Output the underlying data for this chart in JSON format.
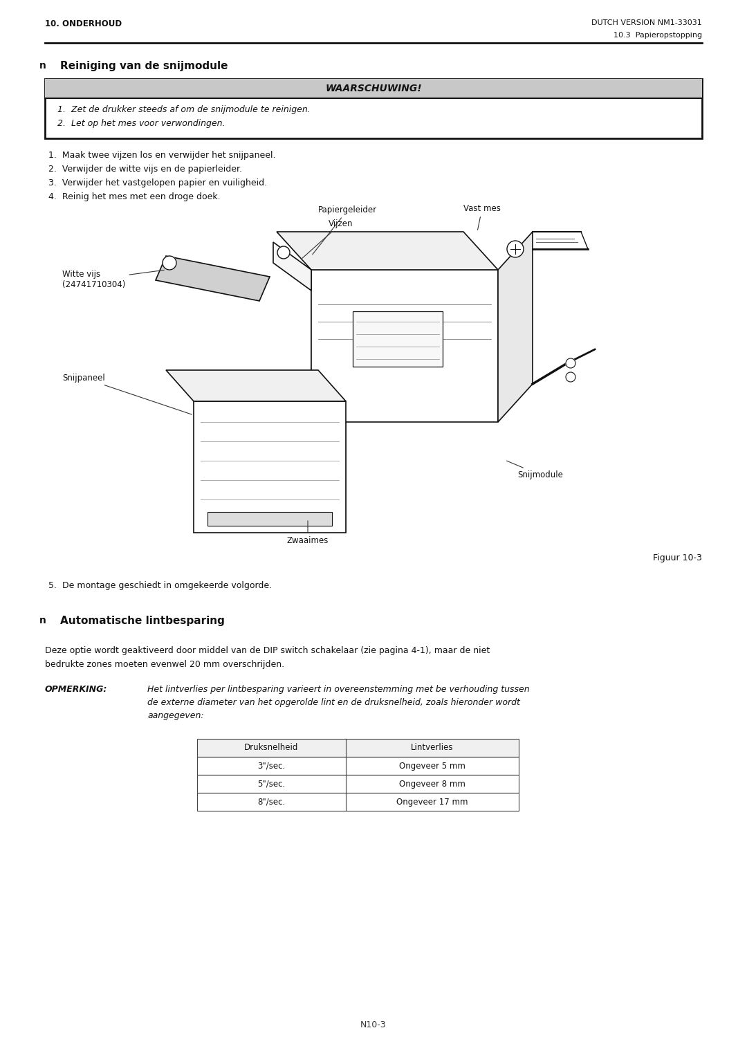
{
  "page_width": 10.8,
  "page_height": 15.25,
  "bg_color": "#ffffff",
  "header_left": "10. ONDERHOUD",
  "header_right": "DUTCH VERSION NM1-33031",
  "header_right2": "10.3  Papieropstopping",
  "footer": "N10-3",
  "section1_title": "Reiniging van de snijmodule",
  "warning_title": "WAARSCHUWING!",
  "warning_line1": "1.  Zet de drukker steeds af om de snijmodule te reinigen.",
  "warning_line2": "2.  Let op het mes voor verwondingen.",
  "steps": [
    "1.  Maak twee vijzen los en verwijder het snijpaneel.",
    "2.  Verwijder de witte vijs en de papierleider.",
    "3.  Verwijder het vastgelopen papier en vuiligheid.",
    "4.  Reinig het mes met een droge doek."
  ],
  "fig_caption": "Figuur 10-3",
  "step5": "5.  De montage geschiedt in omgekeerde volgorde.",
  "section2_title": "Automatische lintbesparing",
  "section2_body1": "Deze optie wordt geaktiveerd door middel van de DIP switch schakelaar (zie pagina 4-1), maar de niet",
  "section2_body2": "bedrukte zones moeten evenwel 20 mm overschrijden.",
  "note_bold": "OPMERKING:",
  "note_text1": "Het lintverlies per lintbesparing varieert in overeenstemming met be verhouding tussen",
  "note_text2": "de externe diameter van het opgerolde lint en de druksnelheid, zoals hieronder wordt",
  "note_text3": "aangegeven:",
  "table_headers": [
    "Druksnelheid",
    "Lintverlies"
  ],
  "table_rows": [
    [
      "3\"/sec.",
      "Ongeveer 5 mm"
    ],
    [
      "5\"/sec.",
      "Ongeveer 8 mm"
    ],
    [
      "8\"/sec.",
      "Ongeveer 17 mm"
    ]
  ],
  "label_papiergeleider": "Papiergeleider",
  "label_vijzen": "Vijzen",
  "label_vast_mes": "Vast mes",
  "label_witte_vijs": "Witte vijs\n(24741710304)",
  "label_snijpaneel": "Snijpaneel",
  "label_snijmodule": "Snijmodule",
  "label_zwaaimes": "Zwaaimes"
}
